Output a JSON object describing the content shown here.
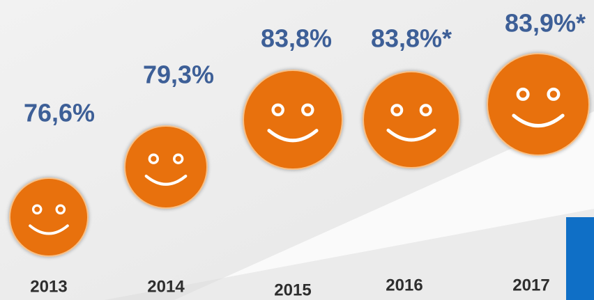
{
  "chart_data": {
    "type": "pictograph",
    "categories": [
      "2013",
      "2014",
      "2015",
      "2016",
      "2017"
    ],
    "values": [
      76.6,
      79.3,
      83.8,
      83.8,
      83.9
    ],
    "value_labels": [
      "76,6%",
      "79,3%",
      "83,8%",
      "83,8%*",
      "83,9%*"
    ],
    "color": "#e8710a"
  }
}
